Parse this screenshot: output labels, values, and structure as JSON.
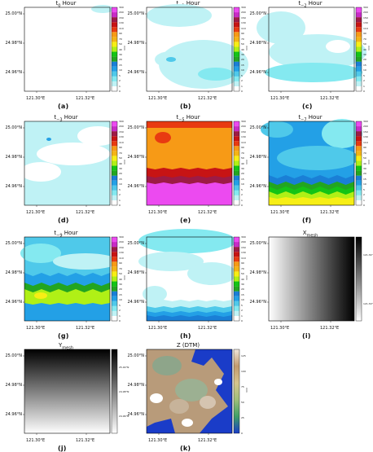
{
  "colors": {
    "scale": [
      "#ffffff",
      "#bff2f5",
      "#84e9f0",
      "#4fc9ea",
      "#23a0e6",
      "#1a7fd6",
      "#23a520",
      "#14c415",
      "#b0f016",
      "#f7ee15",
      "#f4b415",
      "#f79a16",
      "#e83a11",
      "#c71414",
      "#9d1b45",
      "#c82cc6",
      "#ec4af0",
      "#f4a2f7"
    ],
    "gray_dark": "#000000",
    "gray_light": "#ffffff"
  },
  "rain_ticks": [
    "0",
    "1",
    "2",
    "5",
    "10",
    "15",
    "20",
    "30",
    "40",
    "50",
    "70",
    "90",
    "110",
    "130",
    "150",
    "200",
    "300"
  ],
  "dtm_ticks": [
    "0",
    "25",
    "50",
    "75",
    "100",
    "125"
  ],
  "xmesh_ticks": [
    "121.34°E",
    "121.30°E"
  ],
  "ymesh_ticks": [
    "25.00°N",
    "24.98°N",
    "24.96°N"
  ],
  "y_ticks": [
    "25.00°N",
    "24.98°N",
    "24.96°N"
  ],
  "x_ticks": [
    "121.30°E",
    "121.32°E"
  ],
  "unit": "mm",
  "chart_data": [
    {
      "id": "a",
      "type": "heatmap",
      "title": "t",
      "title_sub": "0",
      "title_suffix": " Hour",
      "label": "(a)",
      "kind": "rain",
      "level": 0.8,
      "features": "light rain only at top-right corner"
    },
    {
      "id": "b",
      "type": "heatmap",
      "title": "t",
      "title_sub": "−1",
      "title_suffix": " Hour",
      "label": "(b)",
      "kind": "rain",
      "level": 1.5,
      "features": "light rain bands, heavier south"
    },
    {
      "id": "c",
      "type": "heatmap",
      "title": "t",
      "title_sub": "−2",
      "title_suffix": " Hour",
      "label": "(c)",
      "kind": "rain",
      "level": 1.8,
      "features": "light rain, heavier south"
    },
    {
      "id": "d",
      "type": "heatmap",
      "title": "t",
      "title_sub": "−3",
      "title_suffix": " Hour",
      "label": "(d)",
      "kind": "rain",
      "level": 2.5,
      "features": "light rain with dry patches"
    },
    {
      "id": "e",
      "type": "heatmap",
      "title": "t",
      "title_sub": "−5",
      "title_suffix": " Hour",
      "label": "(e)",
      "kind": "rain",
      "level": 120,
      "features": "heavy rain, increasing south"
    },
    {
      "id": "f",
      "type": "heatmap",
      "title": "t",
      "title_sub": "−7",
      "title_suffix": " Hour",
      "label": "(f)",
      "kind": "rain",
      "level": 12,
      "features": "moderate rain, heavy band south"
    },
    {
      "id": "g",
      "type": "heatmap",
      "title": "t",
      "title_sub": "−9",
      "title_suffix": " Hour",
      "label": "(g)",
      "kind": "rain",
      "level": 9,
      "features": "moderate rain, band south"
    },
    {
      "id": "h",
      "type": "heatmap",
      "title": "t",
      "title_sub": "−11",
      "title_suffix": " Hour",
      "label": "(h)",
      "kind": "rain",
      "level": 1.5,
      "features": "light rain north, dry middle"
    },
    {
      "id": "i",
      "type": "heatmap",
      "title": "X",
      "title_sub": "mesh",
      "title_suffix": "",
      "label": "(i)",
      "kind": "xmesh",
      "gradient": "horizontal"
    },
    {
      "id": "j",
      "type": "heatmap",
      "title": "Y",
      "title_sub": "mesh",
      "title_suffix": "",
      "label": "(j)",
      "kind": "ymesh",
      "gradient": "vertical"
    },
    {
      "id": "k",
      "type": "heatmap",
      "title": "Z (DTM)",
      "title_sub": "",
      "title_suffix": "",
      "label": "(k)",
      "kind": "dtm",
      "colorbar_range": [
        0,
        135
      ]
    }
  ]
}
